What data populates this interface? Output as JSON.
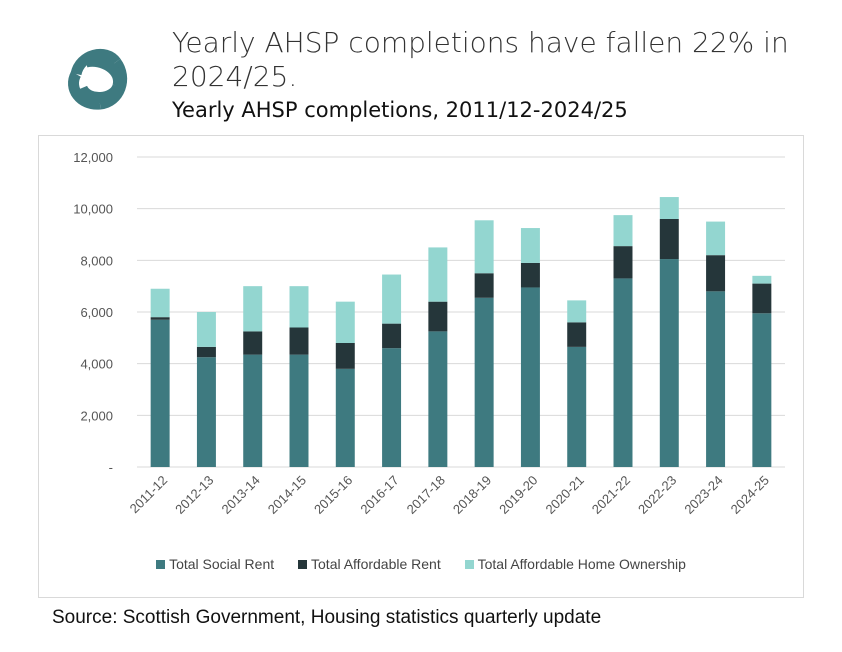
{
  "header": {
    "logo_name": "three-loop-knot-logo",
    "headline": "Yearly AHSP completions have fallen 22% in 2024/25.",
    "subtitle": "Yearly AHSP completions, 2011/12-2024/25"
  },
  "source": "Source: Scottish Government, Housing statistics quarterly update",
  "colors": {
    "social_rent": "#3e7a80",
    "affordable_rent": "#25363a",
    "home_ownership": "#93d6d0",
    "gridline": "#d9d9d9",
    "logo": "#3e7a80"
  },
  "chart_data": {
    "type": "bar",
    "stacked": true,
    "title": "Yearly AHSP completions, 2011/12-2024/25",
    "xlabel": "",
    "ylabel": "",
    "ylim": [
      0,
      12000
    ],
    "yticks": [
      0,
      2000,
      4000,
      6000,
      8000,
      10000,
      12000
    ],
    "ytick_labels": [
      "-",
      "2,000",
      "4,000",
      "6,000",
      "8,000",
      "10,000",
      "12,000"
    ],
    "grid": true,
    "legend_position": "bottom",
    "categories": [
      "2011-12",
      "2012-13",
      "2013-14",
      "2014-15",
      "2015-16",
      "2016-17",
      "2017-18",
      "2018-19",
      "2019-20",
      "2020-21",
      "2021-22",
      "2022-23",
      "2023-24",
      "2024-25"
    ],
    "series": [
      {
        "name": "Total Social Rent",
        "values": [
          5700,
          4250,
          4350,
          4350,
          3800,
          4600,
          5250,
          6550,
          6950,
          4650,
          7300,
          8050,
          6800,
          5950
        ]
      },
      {
        "name": "Total Affordable Rent",
        "values": [
          100,
          400,
          900,
          1050,
          1000,
          950,
          1150,
          950,
          950,
          950,
          1250,
          1550,
          1400,
          1150
        ]
      },
      {
        "name": "Total Affordable Home Ownership",
        "values": [
          1100,
          1350,
          1750,
          1600,
          1600,
          1900,
          2100,
          2050,
          1350,
          850,
          1200,
          850,
          1300,
          300
        ]
      }
    ]
  }
}
